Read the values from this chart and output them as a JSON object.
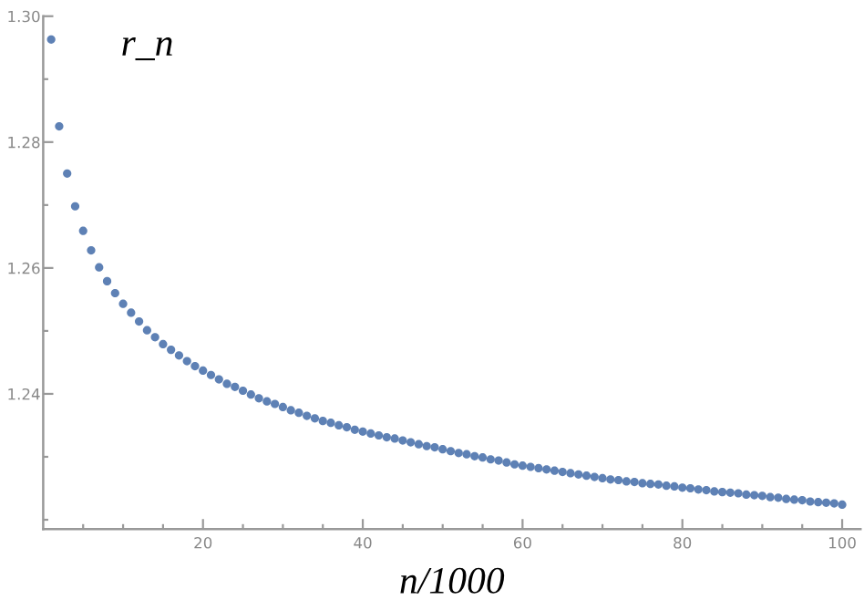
{
  "chart_data": {
    "type": "scatter",
    "xlabel": "n/1000",
    "ylabel": "r_n",
    "x": [
      1,
      2,
      3,
      4,
      5,
      6,
      7,
      8,
      9,
      10,
      11,
      12,
      13,
      14,
      15,
      16,
      17,
      18,
      19,
      20,
      21,
      22,
      23,
      24,
      25,
      26,
      27,
      28,
      29,
      30,
      31,
      32,
      33,
      34,
      35,
      36,
      37,
      38,
      39,
      40,
      41,
      42,
      43,
      44,
      45,
      46,
      47,
      48,
      49,
      50,
      51,
      52,
      53,
      54,
      55,
      56,
      57,
      58,
      59,
      60,
      61,
      62,
      63,
      64,
      65,
      66,
      67,
      68,
      69,
      70,
      71,
      72,
      73,
      74,
      75,
      76,
      77,
      78,
      79,
      80,
      81,
      82,
      83,
      84,
      85,
      86,
      87,
      88,
      89,
      90,
      91,
      92,
      93,
      94,
      95,
      96,
      97,
      98,
      99,
      100
    ],
    "series": [
      {
        "color": "#5e81b5",
        "values": [
          1.2963,
          1.2825,
          1.275,
          1.2698,
          1.2659,
          1.2628,
          1.2601,
          1.2579,
          1.256,
          1.2543,
          1.2529,
          1.2515,
          1.2501,
          1.249,
          1.2479,
          1.247,
          1.2461,
          1.2452,
          1.2444,
          1.2437,
          1.243,
          1.2423,
          1.2416,
          1.2411,
          1.2405,
          1.2399,
          1.2393,
          1.2388,
          1.2384,
          1.2379,
          1.2374,
          1.237,
          1.2365,
          1.2361,
          1.2357,
          1.2354,
          1.235,
          1.2347,
          1.2343,
          1.234,
          1.2337,
          1.2334,
          1.2331,
          1.2329,
          1.2326,
          1.2323,
          1.232,
          1.2317,
          1.2315,
          1.2312,
          1.2309,
          1.2306,
          1.2304,
          1.2301,
          1.2299,
          1.2296,
          1.2294,
          1.2291,
          1.2288,
          1.2286,
          1.2284,
          1.2282,
          1.228,
          1.2278,
          1.2276,
          1.2274,
          1.2272,
          1.227,
          1.2268,
          1.2266,
          1.2264,
          1.2263,
          1.2261,
          1.226,
          1.2258,
          1.2257,
          1.2256,
          1.2254,
          1.2253,
          1.2251,
          1.225,
          1.2248,
          1.2247,
          1.2245,
          1.2244,
          1.2243,
          1.2242,
          1.224,
          1.2239,
          1.2238,
          1.2236,
          1.2235,
          1.2233,
          1.2232,
          1.2231,
          1.2229,
          1.2228,
          1.2227,
          1.2226,
          1.2224
        ]
      }
    ],
    "marker": "circle",
    "xlim": [
      0,
      102.3
    ],
    "ylim": [
      1.2185,
      1.3
    ],
    "xticks": [
      {
        "value": 5,
        "label": null
      },
      {
        "value": 10,
        "label": null
      },
      {
        "value": 15,
        "label": null
      },
      20,
      {
        "value": 25,
        "label": null
      },
      {
        "value": 30,
        "label": null
      },
      {
        "value": 35,
        "label": null
      },
      40,
      {
        "value": 45,
        "label": null
      },
      {
        "value": 50,
        "label": null
      },
      {
        "value": 55,
        "label": null
      },
      60,
      {
        "value": 65,
        "label": null
      },
      {
        "value": 70,
        "label": null
      },
      {
        "value": 75,
        "label": null
      },
      80,
      {
        "value": 85,
        "label": null
      },
      {
        "value": 90,
        "label": null
      },
      {
        "value": 95,
        "label": null
      },
      100
    ],
    "yticks": [
      {
        "value": 1.22,
        "label": null
      },
      {
        "value": 1.23,
        "label": null
      },
      {
        "value": 1.24,
        "label": "1.24"
      },
      {
        "value": 1.25,
        "label": null
      },
      {
        "value": 1.26,
        "label": "1.26"
      },
      {
        "value": 1.27,
        "label": null
      },
      {
        "value": 1.28,
        "label": "1.28"
      },
      {
        "value": 1.29,
        "label": null
      },
      {
        "value": 1.3,
        "label": "1.30"
      }
    ],
    "grid": false,
    "legend": false
  }
}
